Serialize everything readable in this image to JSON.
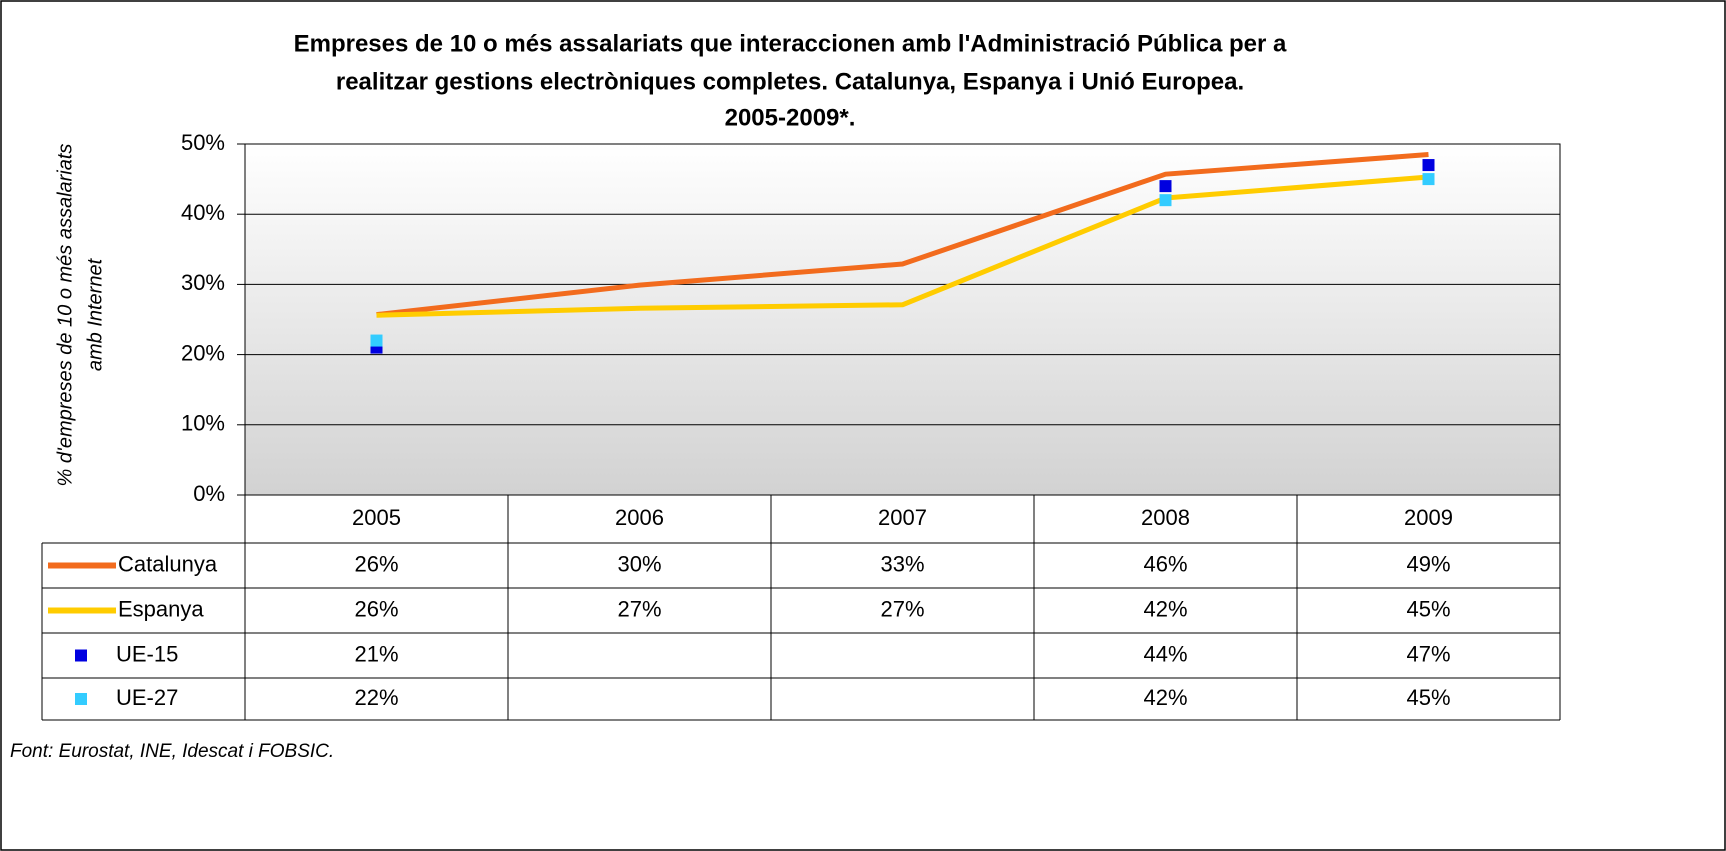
{
  "chart_data": {
    "type": "line",
    "title": [
      "Empreses de 10 o més assalariats que interaccionen amb l'Administració Pública per a",
      "realitzar gestions electròniques completes. Catalunya, Espanya i Unió Europea.",
      "2005-2009*."
    ],
    "y_label": [
      "% d'empreses de 10 o més assalariats",
      "amb Internet"
    ],
    "source": "Font: Eurostat, INE, Idescat i FOBSIC.",
    "categories": [
      "2005",
      "2006",
      "2007",
      "2008",
      "2009"
    ],
    "ylim": [
      0,
      50
    ],
    "yticks": [
      {
        "value": 0,
        "label": "0%"
      },
      {
        "value": 10,
        "label": "10%"
      },
      {
        "value": 20,
        "label": "20%"
      },
      {
        "value": 30,
        "label": "30%"
      },
      {
        "value": 40,
        "label": "40%"
      },
      {
        "value": 50,
        "label": "50%"
      }
    ],
    "grid": true,
    "series": [
      {
        "name": "Catalunya",
        "color": "#f26b1d",
        "style": "line",
        "values": [
          25.7,
          29.9,
          32.9,
          45.7,
          48.5
        ],
        "value_labels": [
          "26%",
          "30%",
          "33%",
          "46%",
          "49%"
        ]
      },
      {
        "name": "Espanya",
        "color": "#ffcc00",
        "style": "line",
        "values": [
          25.6,
          26.6,
          27.1,
          42.3,
          45.3
        ],
        "value_labels": [
          "26%",
          "27%",
          "27%",
          "42%",
          "45%"
        ]
      },
      {
        "name": "UE-15",
        "color": "#0000e0",
        "style": "markers",
        "values": [
          21,
          null,
          null,
          44,
          47
        ],
        "value_labels": [
          "21%",
          null,
          null,
          "44%",
          "47%"
        ]
      },
      {
        "name": "UE-27",
        "color": "#33ccff",
        "style": "markers",
        "values": [
          22,
          null,
          null,
          42,
          45
        ],
        "value_labels": [
          "22%",
          null,
          null,
          "42%",
          "45%"
        ]
      }
    ]
  }
}
